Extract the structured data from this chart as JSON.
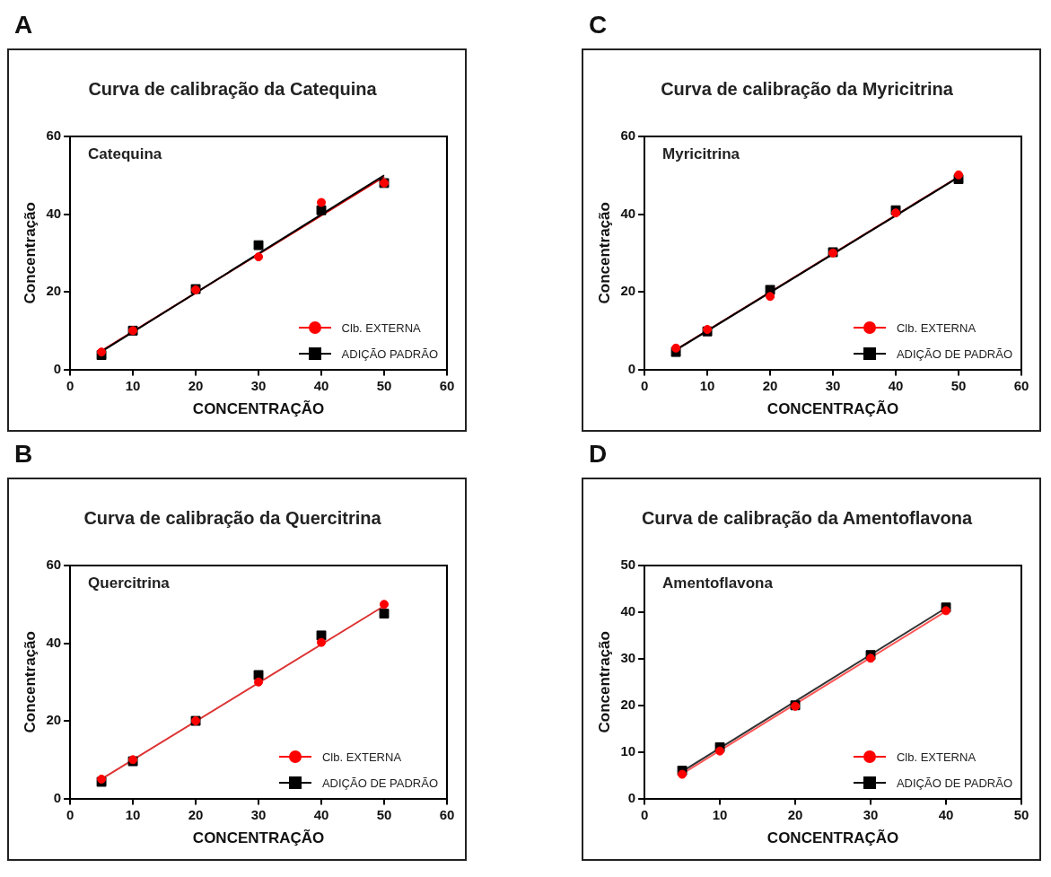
{
  "chart_data": [
    {
      "type": "scatter",
      "title": "Curva de calibração da Catequina",
      "annotations": [
        "A",
        "Catequina"
      ],
      "xlabel": "CONCENTRAÇÃO",
      "ylabel": "Concentração",
      "x": [
        5,
        10,
        20,
        30,
        40,
        50
      ],
      "xlim": [
        0,
        60
      ],
      "xticks": [
        0,
        10,
        20,
        30,
        40,
        50,
        60
      ],
      "ylim": [
        0,
        60
      ],
      "yticks": [
        0,
        20,
        40,
        60
      ],
      "grid": false,
      "legend": "bottom right",
      "series": [
        {
          "name": "Clb. EXTERNA",
          "color": "#ff0000",
          "marker": "circle",
          "values": [
            4.5,
            10,
            20.5,
            29,
            43,
            48
          ]
        },
        {
          "name": "ADIÇÃO PADRÃO",
          "color": "#000000",
          "marker": "square",
          "values": [
            3.7,
            10,
            20.7,
            32,
            41,
            48
          ]
        },
        {
          "type": "line",
          "color": "#000000",
          "x": [
            5,
            50
          ],
          "values": [
            4.6,
            50
          ]
        },
        {
          "type": "line",
          "color": "#cc0000",
          "x": [
            5,
            50
          ],
          "values": [
            4.8,
            49.6
          ]
        }
      ]
    },
    {
      "type": "scatter",
      "title": "Curva de calibração da Myricitrina",
      "annotations": [
        "C",
        "Myricitrina"
      ],
      "xlabel": "CONCENTRAÇÃO",
      "ylabel": "Concentração",
      "x": [
        5,
        10,
        20,
        30,
        40,
        50
      ],
      "xlim": [
        0,
        60
      ],
      "xticks": [
        0,
        10,
        20,
        30,
        40,
        50,
        60
      ],
      "ylim": [
        0,
        60
      ],
      "yticks": [
        0,
        20,
        40,
        60
      ],
      "grid": false,
      "legend": "bottom right",
      "series": [
        {
          "name": "Clb. EXTERNA",
          "color": "#ff0000",
          "marker": "circle",
          "values": [
            5.5,
            10.3,
            18.8,
            30,
            40.3,
            50.1
          ]
        },
        {
          "name": "ADIÇÃO DE PADRÃO",
          "color": "#000000",
          "marker": "square",
          "values": [
            4.5,
            9.8,
            20.5,
            30.2,
            41,
            49
          ]
        },
        {
          "type": "line",
          "color": "#000000",
          "x": [
            5,
            50
          ],
          "values": [
            5,
            49.5
          ]
        },
        {
          "type": "line",
          "color": "#cc0000",
          "x": [
            5,
            50
          ],
          "values": [
            5.1,
            49.6
          ]
        }
      ]
    },
    {
      "type": "scatter",
      "title": "Curva de calibração da Quercitrina",
      "annotations": [
        "B",
        "Quercitrina"
      ],
      "xlabel": "CONCENTRAÇÃO",
      "ylabel": "Concentração",
      "x": [
        5,
        10,
        20,
        30,
        40,
        50
      ],
      "xlim": [
        0,
        60
      ],
      "xticks": [
        0,
        10,
        20,
        30,
        40,
        50,
        60
      ],
      "ylim": [
        0,
        60
      ],
      "yticks": [
        0,
        20,
        40,
        60
      ],
      "grid": false,
      "legend": "bottom right",
      "series": [
        {
          "name": "Clb. EXTERNA",
          "color": "#ff0000",
          "marker": "circle",
          "values": [
            5,
            10,
            20,
            30,
            40.2,
            50
          ]
        },
        {
          "name": "ADIÇÃO DE PADRÃO",
          "color": "#000000",
          "marker": "square",
          "values": [
            4.3,
            9.6,
            20,
            31.8,
            42,
            47.6
          ]
        },
        {
          "type": "line",
          "color": "#dd3333",
          "x": [
            5,
            50
          ],
          "values": [
            5,
            49.6
          ]
        }
      ]
    },
    {
      "type": "scatter",
      "title": "Curva de calibração da Amentoflavona",
      "annotations": [
        "D",
        "Amentoflavona"
      ],
      "xlabel": "CONCENTRAÇÃO",
      "ylabel": "Concentração",
      "x": [
        5,
        10,
        20,
        30,
        40
      ],
      "xlim": [
        0,
        50
      ],
      "xticks": [
        0,
        10,
        20,
        30,
        40,
        50
      ],
      "ylim": [
        0,
        50
      ],
      "yticks": [
        0,
        10,
        20,
        30,
        40,
        50
      ],
      "grid": false,
      "legend": "bottom right",
      "series": [
        {
          "name": "Clb. EXTERNA",
          "color": "#ff0000",
          "marker": "circle",
          "values": [
            5.2,
            10.2,
            19.8,
            30.1,
            40.3
          ]
        },
        {
          "name": "ADIÇÃO DE PADRÃO",
          "color": "#000000",
          "marker": "square",
          "values": [
            6,
            11,
            20,
            30.8,
            41
          ]
        },
        {
          "type": "line",
          "color": "#ff5555",
          "x": [
            5,
            40
          ],
          "values": [
            5.3,
            40.2
          ]
        },
        {
          "type": "line",
          "color": "#333333",
          "x": [
            5,
            40
          ],
          "values": [
            5.8,
            40.9
          ]
        }
      ]
    }
  ]
}
